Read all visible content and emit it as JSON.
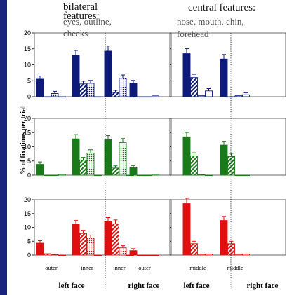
{
  "header": {
    "bilateral_title": "bilateral features:",
    "bilateral_sub": "eyes, outline, cheeks",
    "central_title": "central features:",
    "central_sub": "nose, mouth, chin, forehead"
  },
  "colors": {
    "row_colors": [
      "#0d1a7a",
      "#1a7a1a",
      "#e01010"
    ],
    "sidebar": "#1a237e"
  },
  "chart_data": {
    "type": "bar",
    "ylabel": "% of fixations per trial",
    "ylim": [
      0,
      20
    ],
    "yticks": [
      0,
      5,
      10,
      15,
      20
    ],
    "bar_patterns": [
      "solid",
      "diagonal-stripe",
      "dotted",
      "open"
    ],
    "left_panel": {
      "groups": [
        "outer",
        "inner",
        "inner",
        "outer"
      ],
      "faces": [
        "left face",
        "right face"
      ]
    },
    "right_panel": {
      "groups": [
        "middle",
        "middle"
      ],
      "faces": [
        "left face",
        "right face"
      ]
    },
    "rows": [
      {
        "row": 1,
        "left": [
          [
            5.5,
            0,
            1,
            0
          ],
          [
            13,
            4,
            4.2,
            0
          ],
          [
            14.3,
            1.3,
            5.8,
            0
          ],
          [
            4.2,
            0,
            0,
            0.4
          ]
        ],
        "right": [
          [
            13.5,
            6,
            0.3,
            1.8
          ],
          [
            11.8,
            0,
            0.3,
            0.6
          ]
        ]
      },
      {
        "row": 2,
        "left": [
          [
            3.8,
            0,
            0,
            0.3
          ],
          [
            12.8,
            5.3,
            7.8,
            0
          ],
          [
            12.5,
            2.5,
            11.5,
            0
          ],
          [
            2.6,
            0,
            0,
            0.3
          ]
        ],
        "right": [
          [
            13.5,
            6.8,
            0.2,
            0
          ],
          [
            10.6,
            6.6,
            0,
            0
          ]
        ]
      },
      {
        "row": 3,
        "left": [
          [
            4.3,
            0.5,
            0.2,
            0
          ],
          [
            11.1,
            7.8,
            6.2,
            0
          ],
          [
            12.1,
            11.3,
            2.6,
            0
          ],
          [
            1.6,
            0,
            0,
            0
          ]
        ],
        "right": [
          [
            18.6,
            4.1,
            0.3,
            0.4
          ],
          [
            12.5,
            4.1,
            0.3,
            0.4
          ]
        ]
      }
    ]
  }
}
